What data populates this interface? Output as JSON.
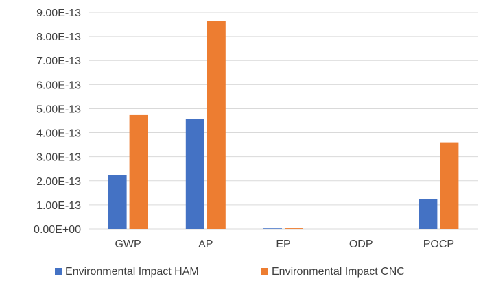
{
  "chart_data": {
    "type": "bar",
    "categories": [
      "GWP",
      "AP",
      "EP",
      "ODP",
      "POCP"
    ],
    "series": [
      {
        "name": "Environmental Impact HAM",
        "color": "#4472c4",
        "values": [
          2.25e-13,
          4.57e-13,
          2.2e-15,
          0,
          1.23e-13
        ]
      },
      {
        "name": "Environmental Impact CNC",
        "color": "#ed7d31",
        "values": [
          4.73e-13,
          8.63e-13,
          2.6e-15,
          0,
          3.6e-13
        ]
      }
    ],
    "ylim": [
      0,
      9e-13
    ],
    "y_ticks": [
      "0.00E+00",
      "1.00E-13",
      "2.00E-13",
      "3.00E-13",
      "4.00E-13",
      "5.00E-13",
      "6.00E-13",
      "7.00E-13",
      "8.00E-13",
      "9.00E-13"
    ],
    "grid": true,
    "legend_position": "bottom"
  }
}
